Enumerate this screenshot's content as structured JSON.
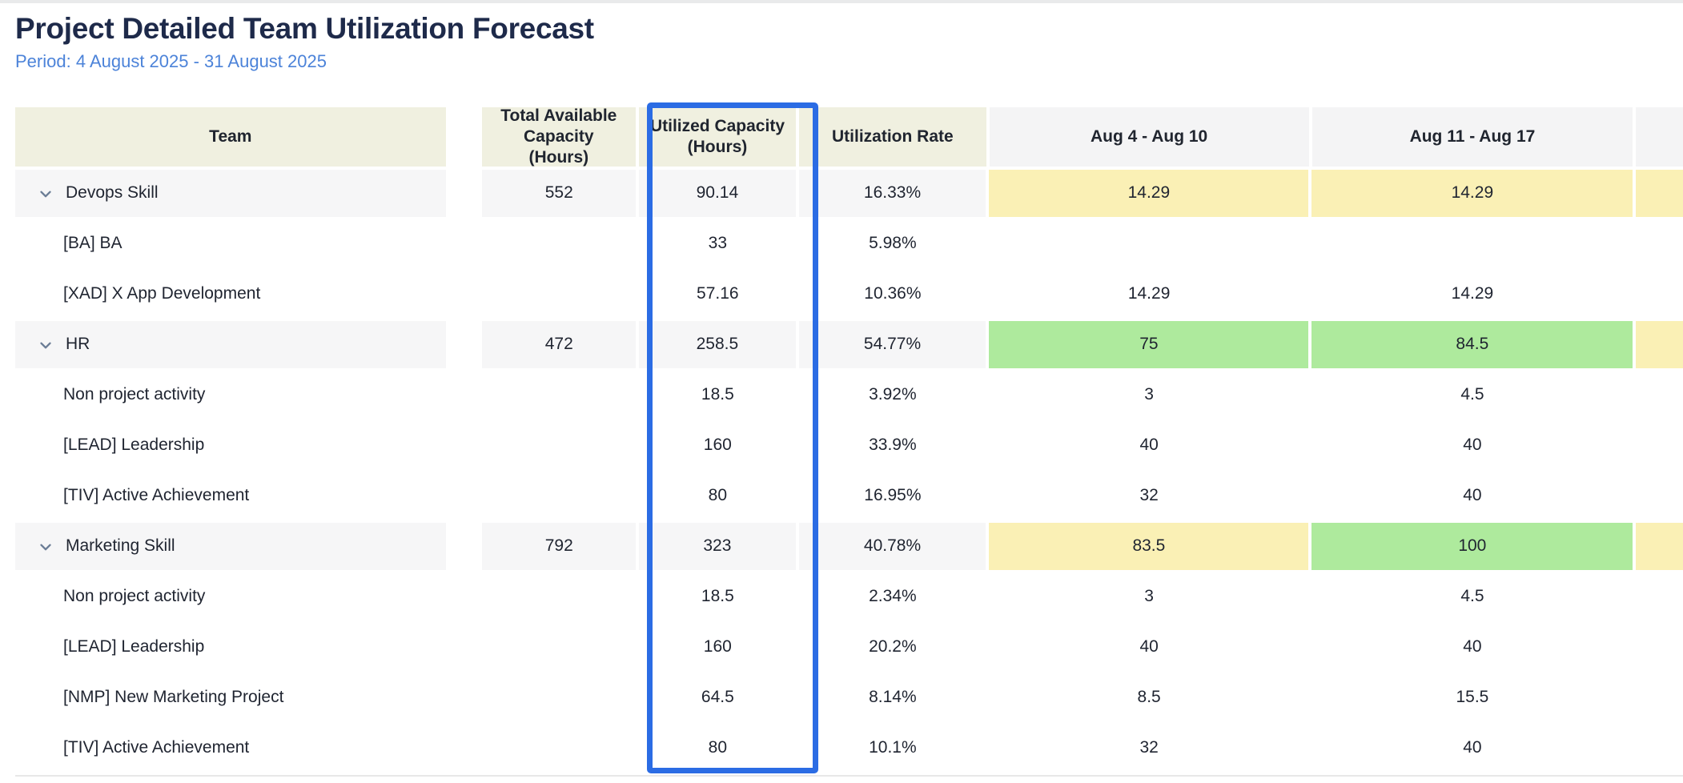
{
  "page": {
    "title": "Project Detailed Team Utilization Forecast",
    "period": "Period: 4 August 2025 - 31 August 2025"
  },
  "table": {
    "columns": [
      {
        "key": "team",
        "label": "Team"
      },
      {
        "key": "total_available",
        "label": "Total Available Capacity (Hours)"
      },
      {
        "key": "utilized",
        "label": "Utilized Capacity (Hours)",
        "highlighted": true
      },
      {
        "key": "utilization_rate",
        "label": "Utilization Rate"
      },
      {
        "key": "week1",
        "label": "Aug 4 - Aug 10"
      },
      {
        "key": "week2",
        "label": "Aug 11 - Aug 17"
      },
      {
        "key": "week3_partial",
        "label": ""
      }
    ],
    "colors": {
      "yellow": "#faf0b5",
      "green": "#aeea9d",
      "header_beige": "#f0f0e0",
      "header_gray": "#f4f4f5",
      "group_row_gray": "#f6f6f7",
      "highlight_border": "#2b6ce4",
      "chevron": "#6b7d96",
      "title": "#1e2a4a",
      "period_blue": "#4c83d9"
    },
    "rows": [
      {
        "team": "Devops Skill",
        "type": "group",
        "expanded": true,
        "total_available": "552",
        "utilized": "90.14",
        "utilization_rate": "16.33%",
        "week1": {
          "value": "14.29",
          "color": "yellow"
        },
        "week2": {
          "value": "14.29",
          "color": "yellow"
        },
        "week3": {
          "value": "",
          "color": "yellow"
        }
      },
      {
        "team": "[BA] BA",
        "type": "child",
        "total_available": "",
        "utilized": "33",
        "utilization_rate": "5.98%",
        "week1": {
          "value": "",
          "color": "none"
        },
        "week2": {
          "value": "",
          "color": "none"
        },
        "week3": {
          "value": "",
          "color": "none"
        }
      },
      {
        "team": "[XAD] X App Development",
        "type": "child",
        "total_available": "",
        "utilized": "57.16",
        "utilization_rate": "10.36%",
        "week1": {
          "value": "14.29",
          "color": "none"
        },
        "week2": {
          "value": "14.29",
          "color": "none"
        },
        "week3": {
          "value": "",
          "color": "none"
        }
      },
      {
        "team": "HR",
        "type": "group",
        "expanded": true,
        "total_available": "472",
        "utilized": "258.5",
        "utilization_rate": "54.77%",
        "week1": {
          "value": "75",
          "color": "green"
        },
        "week2": {
          "value": "84.5",
          "color": "green"
        },
        "week3": {
          "value": "",
          "color": "yellow"
        }
      },
      {
        "team": "Non project activity",
        "type": "child",
        "total_available": "",
        "utilized": "18.5",
        "utilization_rate": "3.92%",
        "week1": {
          "value": "3",
          "color": "none"
        },
        "week2": {
          "value": "4.5",
          "color": "none"
        },
        "week3": {
          "value": "",
          "color": "none"
        }
      },
      {
        "team": "[LEAD] Leadership",
        "type": "child",
        "total_available": "",
        "utilized": "160",
        "utilization_rate": "33.9%",
        "week1": {
          "value": "40",
          "color": "none"
        },
        "week2": {
          "value": "40",
          "color": "none"
        },
        "week3": {
          "value": "",
          "color": "none"
        }
      },
      {
        "team": "[TIV] Active Achievement",
        "type": "child",
        "total_available": "",
        "utilized": "80",
        "utilization_rate": "16.95%",
        "week1": {
          "value": "32",
          "color": "none"
        },
        "week2": {
          "value": "40",
          "color": "none"
        },
        "week3": {
          "value": "",
          "color": "none"
        }
      },
      {
        "team": "Marketing Skill",
        "type": "group",
        "expanded": true,
        "total_available": "792",
        "utilized": "323",
        "utilization_rate": "40.78%",
        "week1": {
          "value": "83.5",
          "color": "yellow"
        },
        "week2": {
          "value": "100",
          "color": "green"
        },
        "week3": {
          "value": "",
          "color": "yellow"
        }
      },
      {
        "team": "Non project activity",
        "type": "child",
        "total_available": "",
        "utilized": "18.5",
        "utilization_rate": "2.34%",
        "week1": {
          "value": "3",
          "color": "none"
        },
        "week2": {
          "value": "4.5",
          "color": "none"
        },
        "week3": {
          "value": "",
          "color": "none"
        }
      },
      {
        "team": "[LEAD] Leadership",
        "type": "child",
        "total_available": "",
        "utilized": "160",
        "utilization_rate": "20.2%",
        "week1": {
          "value": "40",
          "color": "none"
        },
        "week2": {
          "value": "40",
          "color": "none"
        },
        "week3": {
          "value": "",
          "color": "none"
        }
      },
      {
        "team": "[NMP] New Marketing Project",
        "type": "child",
        "total_available": "",
        "utilized": "64.5",
        "utilization_rate": "8.14%",
        "week1": {
          "value": "8.5",
          "color": "none"
        },
        "week2": {
          "value": "15.5",
          "color": "none"
        },
        "week3": {
          "value": "",
          "color": "none"
        }
      },
      {
        "team": "[TIV] Active Achievement",
        "type": "child",
        "total_available": "",
        "utilized": "80",
        "utilization_rate": "10.1%",
        "week1": {
          "value": "32",
          "color": "none"
        },
        "week2": {
          "value": "40",
          "color": "none"
        },
        "week3": {
          "value": "",
          "color": "none"
        }
      }
    ]
  }
}
